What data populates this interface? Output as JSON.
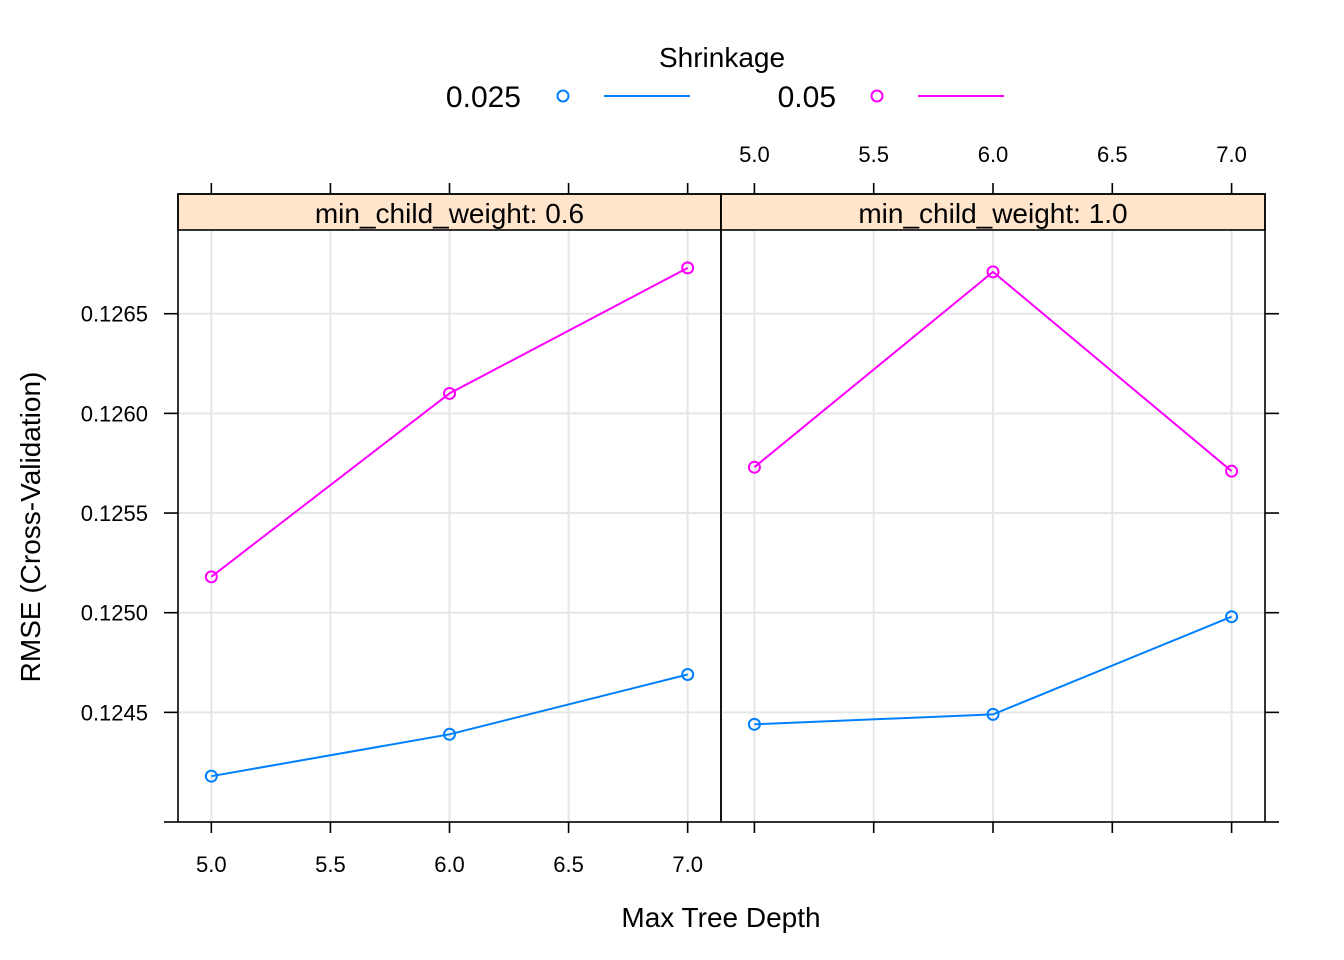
{
  "chart_data": {
    "type": "line",
    "xlabel": "Max Tree Depth",
    "ylabel": "RMSE (Cross-Validation)",
    "legend": {
      "title": "Shrinkage",
      "placement": "top-center"
    },
    "x_ticks": [
      5.0,
      5.5,
      6.0,
      6.5,
      7.0
    ],
    "x_tick_labels": [
      "5.0",
      "5.5",
      "6.0",
      "6.5",
      "7.0"
    ],
    "y_ticks": [
      0.1245,
      0.125,
      0.1255,
      0.126,
      0.1265
    ],
    "y_tick_labels": [
      "0.1245",
      "0.1250",
      "0.1255",
      "0.1260",
      "0.1265"
    ],
    "xlim": [
      4.86,
      7.14
    ],
    "ylim": [
      0.12395,
      0.12692
    ],
    "grid": true,
    "series_styles": [
      {
        "name": "0.025",
        "color": "#0080ff"
      },
      {
        "name": "0.05",
        "color": "#ff00ff"
      }
    ],
    "panels": [
      {
        "strip": "min_child_weight: 0.6",
        "x": [
          5,
          6,
          7
        ],
        "series": [
          {
            "name": "0.025",
            "values": [
              0.12418,
              0.12439,
              0.12469
            ]
          },
          {
            "name": "0.05",
            "values": [
              0.12518,
              0.1261,
              0.12673
            ]
          }
        ]
      },
      {
        "strip": "min_child_weight: 1.0",
        "x": [
          5,
          6,
          7
        ],
        "series": [
          {
            "name": "0.025",
            "values": [
              0.12444,
              0.12449,
              0.12498
            ]
          },
          {
            "name": "0.05",
            "values": [
              0.12573,
              0.12671,
              0.12571
            ]
          }
        ]
      }
    ]
  }
}
